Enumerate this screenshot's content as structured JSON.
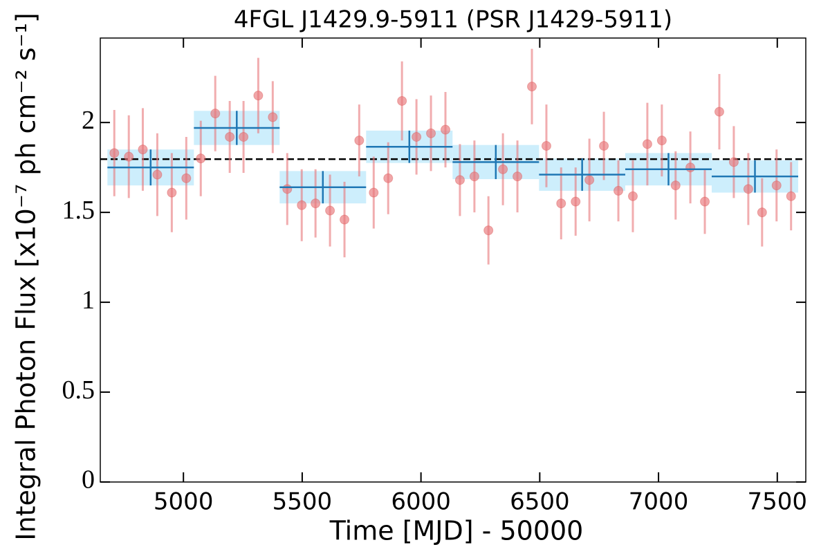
{
  "chart_data": {
    "type": "errorbar",
    "title": "4FGL J1429.9-5911 (PSR J1429-5911)",
    "x_label": "Time [MJD] - 50000",
    "y_label": "Integral Photon Flux [x10⁻⁷ ph cm⁻² s⁻¹]",
    "xlim": [
      4650,
      7620
    ],
    "ylim": [
      0,
      2.47
    ],
    "xticks": [
      5000,
      5500,
      6000,
      6500,
      7000,
      7500
    ],
    "yticks": [
      0,
      0.5,
      1,
      1.5,
      2
    ],
    "reference_line": 1.796,
    "points": {
      "color": "#e8767a",
      "x": [
        4709,
        4770,
        4829,
        4890,
        4951,
        5012,
        5073,
        5134,
        5195,
        5253,
        5315,
        5376,
        5437,
        5498,
        5556,
        5617,
        5678,
        5740,
        5801,
        5862,
        5920,
        5981,
        6042,
        6103,
        6164,
        6225,
        6284,
        6345,
        6406,
        6467,
        6528,
        6590,
        6651,
        6709,
        6770,
        6831,
        6892,
        6953,
        7014,
        7072,
        7134,
        7195,
        7256,
        7317,
        7378,
        7436,
        7497,
        7558
      ],
      "values": [
        1.83,
        1.81,
        1.85,
        1.71,
        1.61,
        1.69,
        1.8,
        2.05,
        1.92,
        1.92,
        2.15,
        2.03,
        1.63,
        1.54,
        1.55,
        1.51,
        1.46,
        1.9,
        1.61,
        1.69,
        2.12,
        1.92,
        1.94,
        1.96,
        1.68,
        1.7,
        1.4,
        1.74,
        1.7,
        2.2,
        1.87,
        1.55,
        1.56,
        1.68,
        1.87,
        1.62,
        1.59,
        1.88,
        1.9,
        1.65,
        1.75,
        1.56,
        2.06,
        1.78,
        1.63,
        1.5,
        1.65,
        1.59
      ],
      "errors": [
        0.24,
        0.23,
        0.23,
        0.23,
        0.22,
        0.23,
        0.21,
        0.21,
        0.2,
        0.2,
        0.21,
        0.2,
        0.2,
        0.2,
        0.19,
        0.2,
        0.21,
        0.2,
        0.2,
        0.2,
        0.22,
        0.21,
        0.21,
        0.21,
        0.2,
        0.2,
        0.19,
        0.2,
        0.2,
        0.21,
        0.23,
        0.2,
        0.19,
        0.23,
        0.19,
        0.17,
        0.2,
        0.23,
        0.2,
        0.19,
        0.2,
        0.18,
        0.21,
        0.2,
        0.2,
        0.19,
        0.2,
        0.19
      ]
    },
    "bins": {
      "color": "#1f77b4",
      "band_color": "#cdeefc",
      "edges": [
        4680,
        5044,
        5405,
        5769,
        6133,
        6497,
        6860,
        7224,
        7588
      ],
      "values": [
        1.75,
        1.97,
        1.64,
        1.865,
        1.78,
        1.71,
        1.74,
        1.7
      ],
      "errors": [
        0.1,
        0.095,
        0.09,
        0.09,
        0.095,
        0.09,
        0.09,
        0.09
      ]
    }
  }
}
